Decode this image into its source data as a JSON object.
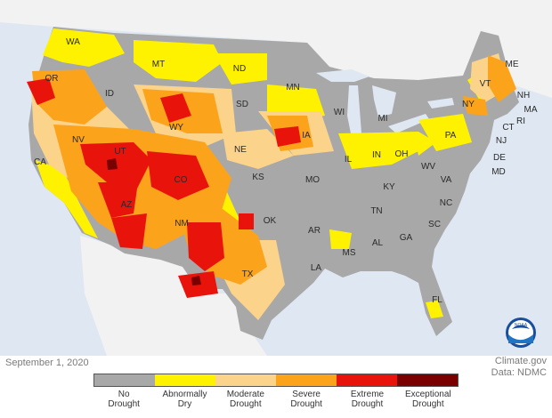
{
  "date": "September 1, 2020",
  "credit": {
    "line1": "Climate.gov",
    "line2": "Data: NDMC"
  },
  "logo_text": "NOAA",
  "colors": {
    "ocean": "#dfe8f2",
    "land_outside": "#f2f2f2",
    "no_drought": "#a8a8a8",
    "abnormally_dry": "#fff200",
    "moderate": "#fcd38a",
    "severe": "#fca31c",
    "extreme": "#e8140c",
    "exceptional": "#7a0000"
  },
  "legend": [
    {
      "line1": "No",
      "line2": "Drought",
      "color": "#a8a8a8"
    },
    {
      "line1": "Abnormally",
      "line2": "Dry",
      "color": "#fff200"
    },
    {
      "line1": "Moderate",
      "line2": "Drought",
      "color": "#fcd38a"
    },
    {
      "line1": "Severe",
      "line2": "Drought",
      "color": "#fca31c"
    },
    {
      "line1": "Extreme",
      "line2": "Drought",
      "color": "#e8140c"
    },
    {
      "line1": "Exceptional",
      "line2": "Drought",
      "color": "#7a0000"
    }
  ],
  "states": [
    "WA",
    "OR",
    "ID",
    "MT",
    "ND",
    "SD",
    "MN",
    "WI",
    "MI",
    "NY",
    "VT",
    "ME",
    "NH",
    "MA",
    "RI",
    "CT",
    "NJ",
    "DE",
    "MD",
    "PA",
    "IA",
    "NE",
    "WY",
    "NV",
    "CA",
    "UT",
    "CO",
    "KS",
    "MO",
    "IL",
    "IN",
    "OH",
    "WV",
    "VA",
    "KY",
    "TN",
    "NC",
    "SC",
    "GA",
    "AL",
    "MS",
    "AR",
    "LA",
    "OK",
    "TX",
    "NM",
    "AZ",
    "FL"
  ]
}
